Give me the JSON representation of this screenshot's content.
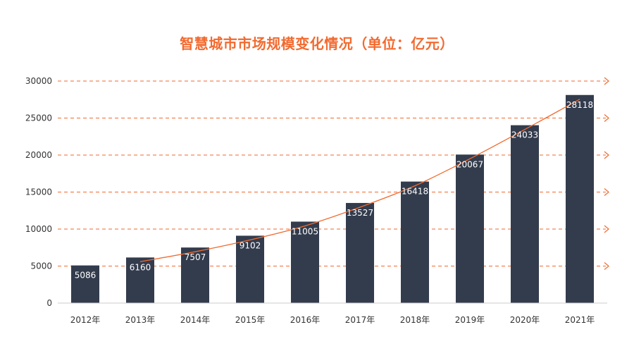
{
  "chart_data": {
    "type": "bar",
    "title": "智慧城市市场规模变化情况（单位：亿元）",
    "categories": [
      "2012年",
      "2013年",
      "2014年",
      "2015年",
      "2016年",
      "2017年",
      "2018年",
      "2019年",
      "2020年",
      "2021年"
    ],
    "values": [
      5086,
      6160,
      7507,
      9102,
      11005,
      13527,
      16418,
      20067,
      24033,
      28118
    ],
    "data_labels": [
      "5086",
      "6160",
      "7507",
      "9102",
      "11005",
      "13527",
      "16418",
      "20067",
      "24033",
      "28118"
    ],
    "trendline": {
      "start_index": 1,
      "end_index": 9
    },
    "ylim": [
      0,
      30000
    ],
    "yticks": [
      0,
      5000,
      10000,
      15000,
      20000,
      25000,
      30000
    ],
    "ytick_labels": [
      "0",
      "5000",
      "10000",
      "15000",
      "20000",
      "25000",
      "30000"
    ],
    "xlabel": "",
    "ylabel": "",
    "grid": true,
    "legend": "none"
  },
  "colors": {
    "title": "#f26a2f",
    "bar": "#333c4d",
    "grid": "#f26a2f",
    "trendline": "#f26a2f",
    "axis": "#cccccc",
    "label": "#ffffff",
    "tick": "#333333"
  }
}
